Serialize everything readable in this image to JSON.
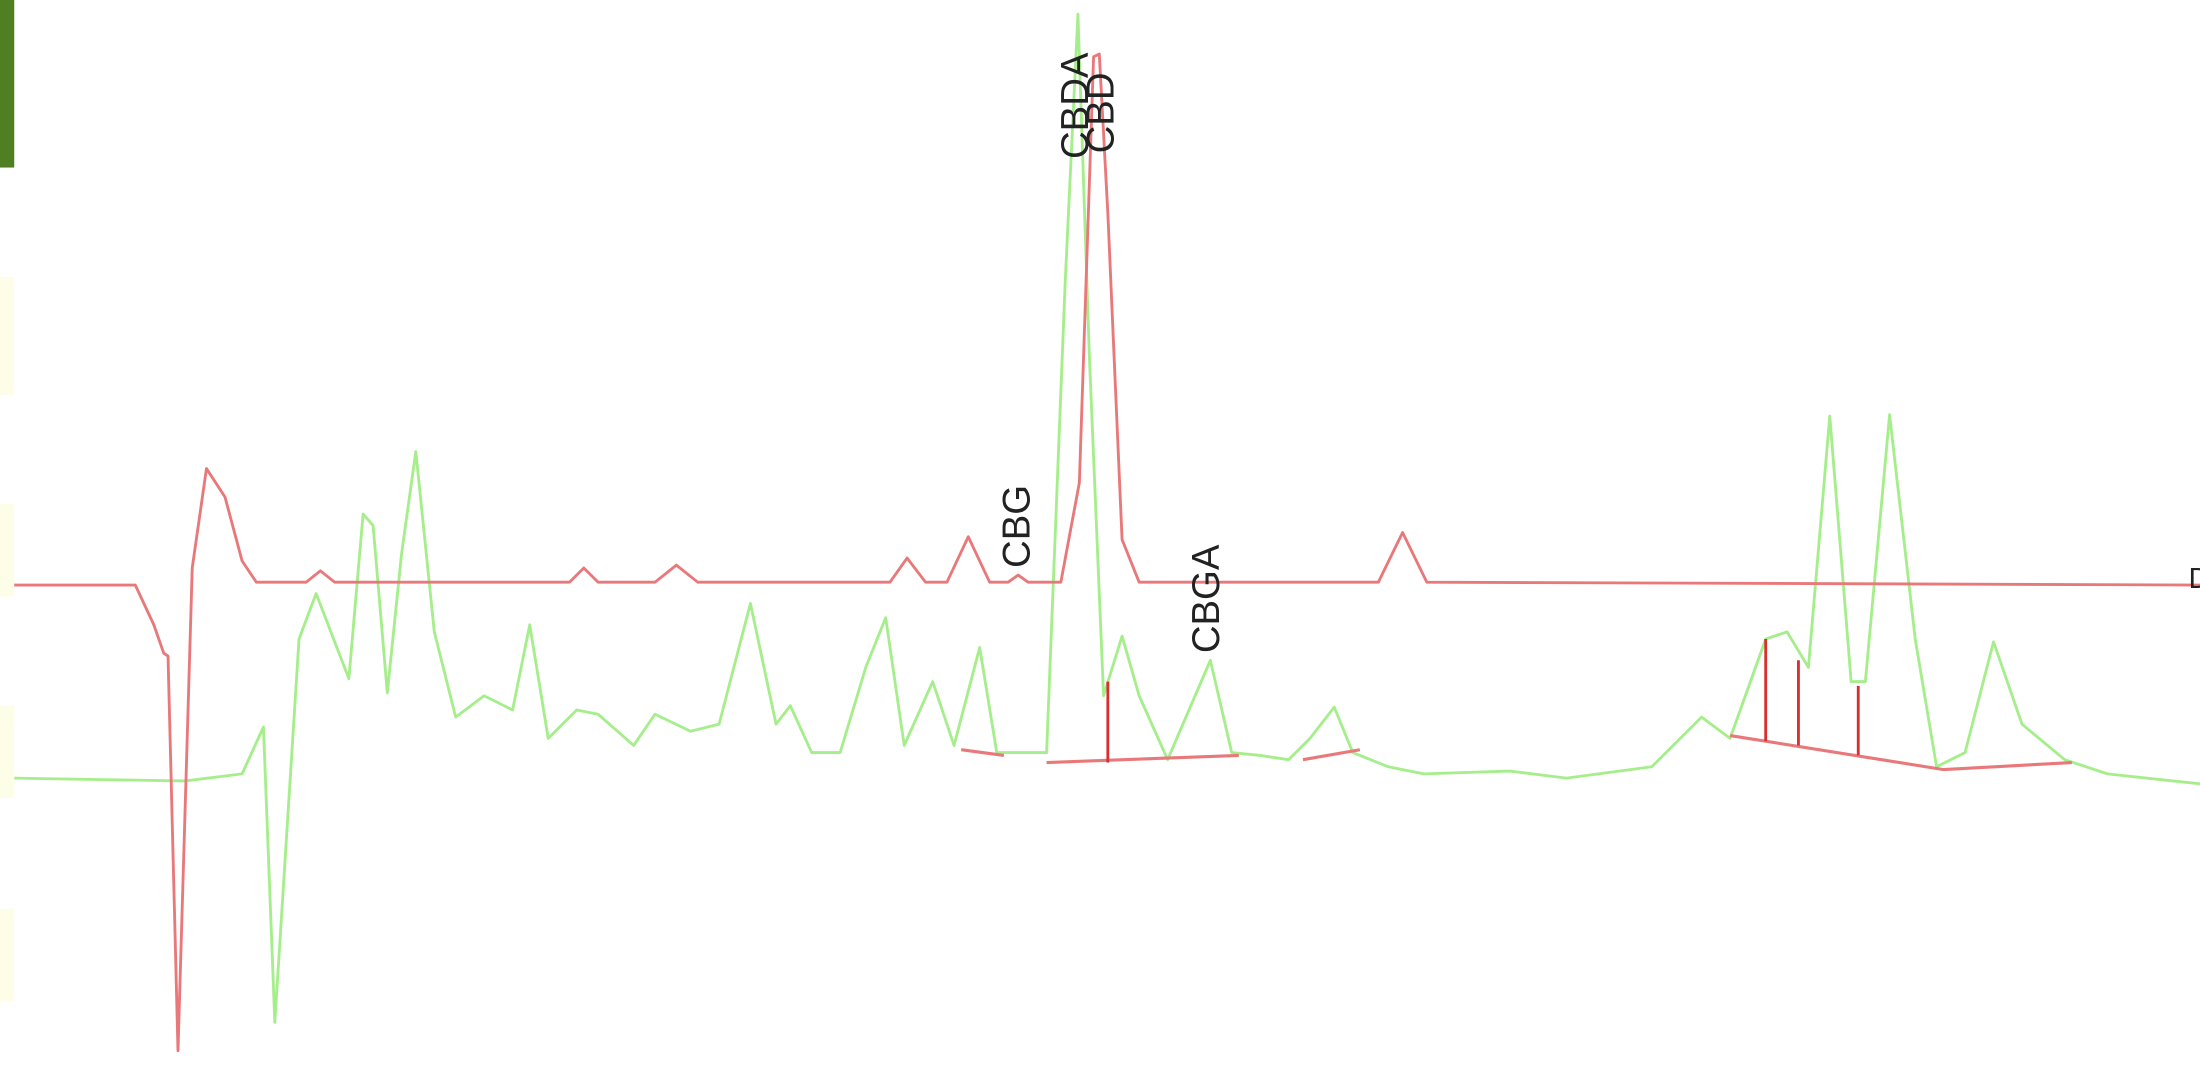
{
  "peak_labels": {
    "cbda": "CBDA",
    "cbd": "CBD",
    "cbg": "CBG",
    "cbga": "CBGA"
  },
  "right_edge_label": "D"
}
